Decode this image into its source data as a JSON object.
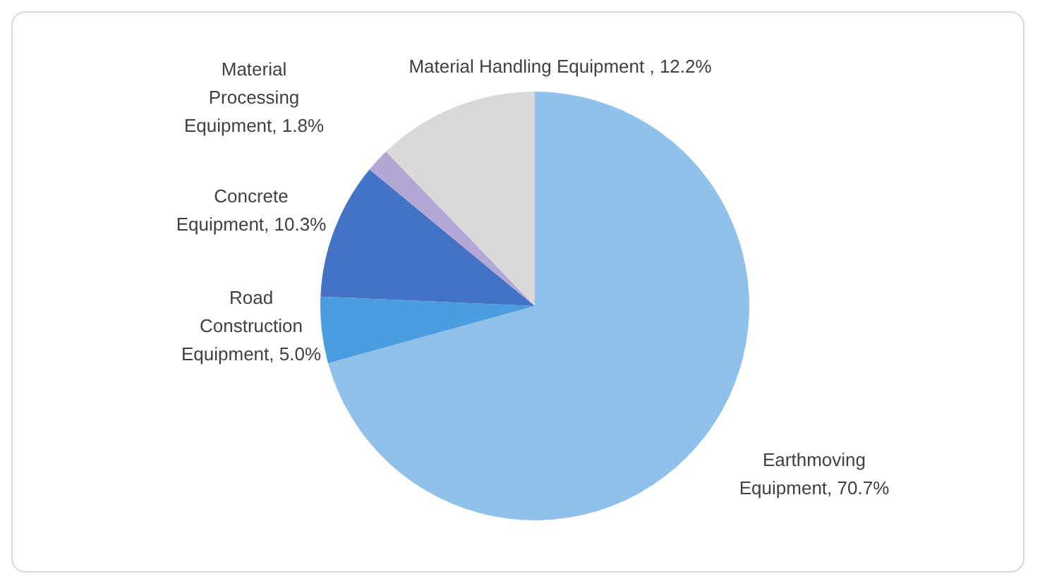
{
  "chart_data": {
    "type": "pie",
    "categories": [
      "Earthmoving Equipment",
      "Road Construction Equipment",
      "Concrete Equipment",
      "Material Processing Equipment",
      "Material Handling Equipment "
    ],
    "values": [
      70.7,
      5.0,
      10.3,
      1.8,
      12.2
    ],
    "colors": [
      "#8fc1ea",
      "#4a9ee0",
      "#4472c4",
      "#b4a7d6",
      "#d9d9d9"
    ],
    "value_labels": [
      "70.7%",
      "5.0%",
      "10.3%",
      "1.8%",
      "12.2%"
    ],
    "legend": false
  }
}
